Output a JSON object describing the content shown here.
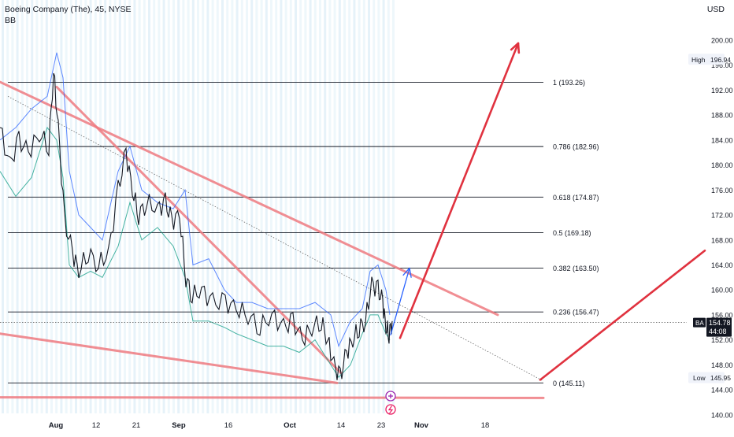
{
  "header": {
    "title": "Boeing Company (The), 45, NYSE",
    "indicator": "BB",
    "currency": "USD"
  },
  "colors": {
    "price": "#131722",
    "bb_upper": "#2962ff",
    "bb_lower": "#089981",
    "trendline": "#ef7b81",
    "arrow_red": "#e0323f",
    "arrow_blue": "#2962ff",
    "grid_fill": "#e3f1f8",
    "fib_line": "#131722"
  },
  "price_axis": {
    "ticks": [
      "200.00",
      "196.00",
      "192.00",
      "188.00",
      "184.00",
      "180.00",
      "176.00",
      "172.00",
      "168.00",
      "164.00",
      "160.00",
      "156.00",
      "152.00",
      "148.00",
      "144.00",
      "140.00"
    ],
    "high_label": "High",
    "high_value": "196.94",
    "low_label": "Low",
    "low_value": "145.95",
    "last_symbol": "BA",
    "last_price": "154.78",
    "countdown": "44:08"
  },
  "time_axis": {
    "labels": [
      "Aug",
      "12",
      "21",
      "Sep",
      "16",
      "Oct",
      "14",
      "23",
      "Nov",
      "18"
    ]
  },
  "chart_data": {
    "type": "line",
    "title": "Boeing Company (The), 45, NYSE",
    "symbol": "BA",
    "interval": "45",
    "exchange": "NYSE",
    "indicator": "BB",
    "y_axis_range": [
      140,
      204
    ],
    "x_axis_range": [
      "late Jul",
      "late Nov"
    ],
    "grid": "vertical bar shading",
    "series": [
      {
        "name": "",
        "role": "price",
        "approx_path": [
          {
            "x": "Jul 24",
            "y": 186
          },
          {
            "x": "Jul 31",
            "y": 183
          },
          {
            "x": "Aug 1",
            "y": 195
          },
          {
            "x": "Aug 3",
            "y": 172
          },
          {
            "x": "Aug 7",
            "y": 163
          },
          {
            "x": "Aug 15",
            "y": 166
          },
          {
            "x": "Aug 21",
            "y": 182
          },
          {
            "x": "Aug 23",
            "y": 174
          },
          {
            "x": "Aug 31",
            "y": 172
          },
          {
            "x": "Sep 5",
            "y": 160
          },
          {
            "x": "Sep 14",
            "y": 157
          },
          {
            "x": "Sep 22",
            "y": 156
          },
          {
            "x": "Sep 28",
            "y": 154
          },
          {
            "x": "Oct 3",
            "y": 155
          },
          {
            "x": "Oct 10",
            "y": 153
          },
          {
            "x": "Oct 13",
            "y": 146
          },
          {
            "x": "Oct 18",
            "y": 152
          },
          {
            "x": "Oct 20",
            "y": 155
          },
          {
            "x": "Oct 22",
            "y": 161
          },
          {
            "x": "Oct 24",
            "y": 157
          },
          {
            "x": "Oct 25",
            "y": 154.78
          }
        ]
      }
    ],
    "fibonacci": [
      {
        "label": "1 (193.26)",
        "value": 193.26
      },
      {
        "label": "0.786 (182.96)",
        "value": 182.96
      },
      {
        "label": "0.618 (174.87)",
        "value": 174.87
      },
      {
        "label": "0.5 (169.18)",
        "value": 169.18
      },
      {
        "label": "0.382 (163.50)",
        "value": 163.5
      },
      {
        "label": "0.236 (156.47)",
        "value": 156.47
      },
      {
        "label": "0 (145.11)",
        "value": 145.11
      }
    ],
    "high": 196.94,
    "low": 145.95,
    "last": 154.78,
    "annotations": [
      "descending trendlines",
      "projected rise arrows to ~200 and ~166"
    ]
  }
}
